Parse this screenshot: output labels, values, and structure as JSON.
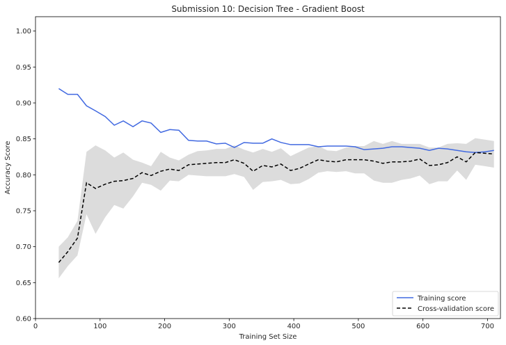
{
  "chart_data": {
    "type": "line",
    "title": "Submission 10: Decision Tree - Gradient Boost",
    "xlabel": "Training Set Size",
    "ylabel": "Accuracy Score",
    "xlim": [
      0,
      720
    ],
    "ylim": [
      0.6,
      1.02
    ],
    "xticks": [
      0,
      100,
      200,
      300,
      400,
      500,
      600,
      700
    ],
    "yticks": [
      0.6,
      0.65,
      0.7,
      0.75,
      0.8,
      0.85,
      0.9,
      0.95,
      1.0
    ],
    "grid": false,
    "legend_position": "lower-right",
    "x": [
      36,
      50,
      65,
      79,
      93,
      108,
      122,
      136,
      151,
      165,
      179,
      194,
      208,
      222,
      237,
      251,
      265,
      280,
      294,
      308,
      323,
      337,
      352,
      366,
      380,
      395,
      409,
      423,
      438,
      452,
      466,
      481,
      495,
      509,
      524,
      538,
      552,
      567,
      581,
      595,
      610,
      624,
      638,
      653,
      667,
      681,
      696,
      710
    ],
    "series": [
      {
        "name": "Training score",
        "color": "#4169e1",
        "style": "solid",
        "values": [
          0.92,
          0.912,
          0.912,
          0.896,
          0.889,
          0.881,
          0.869,
          0.875,
          0.867,
          0.875,
          0.872,
          0.859,
          0.863,
          0.862,
          0.848,
          0.847,
          0.847,
          0.843,
          0.844,
          0.838,
          0.845,
          0.844,
          0.844,
          0.85,
          0.845,
          0.842,
          0.842,
          0.842,
          0.839,
          0.84,
          0.84,
          0.84,
          0.839,
          0.835,
          0.836,
          0.837,
          0.839,
          0.839,
          0.838,
          0.837,
          0.834,
          0.837,
          0.836,
          0.834,
          0.832,
          0.831,
          0.832,
          0.834
        ]
      },
      {
        "name": "Cross-validation score",
        "color": "#000000",
        "style": "dashed",
        "values": [
          0.678,
          0.693,
          0.712,
          0.789,
          0.781,
          0.787,
          0.791,
          0.792,
          0.795,
          0.803,
          0.799,
          0.805,
          0.808,
          0.806,
          0.814,
          0.815,
          0.816,
          0.817,
          0.817,
          0.821,
          0.816,
          0.805,
          0.813,
          0.811,
          0.815,
          0.806,
          0.809,
          0.815,
          0.821,
          0.819,
          0.818,
          0.821,
          0.821,
          0.821,
          0.819,
          0.816,
          0.818,
          0.818,
          0.819,
          0.822,
          0.813,
          0.814,
          0.817,
          0.825,
          0.818,
          0.831,
          0.83,
          0.829
        ],
        "band_lower": [
          0.656,
          0.673,
          0.688,
          0.745,
          0.718,
          0.741,
          0.758,
          0.753,
          0.77,
          0.789,
          0.786,
          0.778,
          0.792,
          0.791,
          0.8,
          0.799,
          0.798,
          0.798,
          0.798,
          0.801,
          0.797,
          0.779,
          0.79,
          0.791,
          0.793,
          0.787,
          0.788,
          0.794,
          0.803,
          0.805,
          0.804,
          0.805,
          0.802,
          0.802,
          0.792,
          0.789,
          0.789,
          0.793,
          0.795,
          0.799,
          0.787,
          0.791,
          0.791,
          0.806,
          0.793,
          0.814,
          0.812,
          0.81
        ],
        "band_upper": [
          0.7,
          0.713,
          0.736,
          0.832,
          0.841,
          0.834,
          0.824,
          0.831,
          0.821,
          0.817,
          0.812,
          0.832,
          0.824,
          0.82,
          0.828,
          0.833,
          0.834,
          0.836,
          0.836,
          0.841,
          0.835,
          0.831,
          0.836,
          0.832,
          0.837,
          0.826,
          0.832,
          0.838,
          0.84,
          0.834,
          0.833,
          0.838,
          0.84,
          0.84,
          0.847,
          0.843,
          0.847,
          0.843,
          0.843,
          0.843,
          0.838,
          0.838,
          0.843,
          0.844,
          0.843,
          0.851,
          0.849,
          0.847
        ]
      }
    ],
    "band_color": "#dcdcdc"
  }
}
